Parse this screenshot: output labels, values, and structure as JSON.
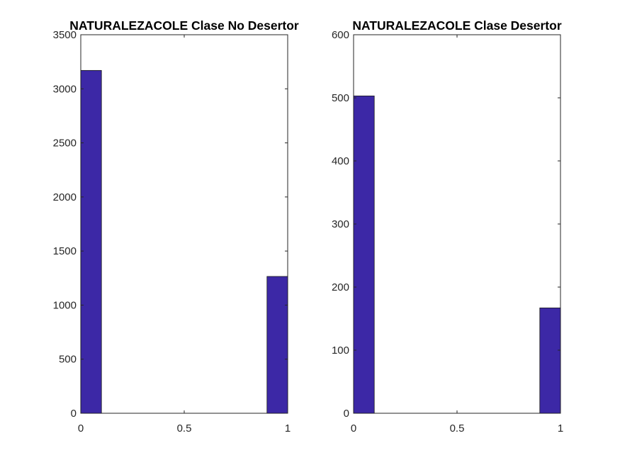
{
  "figure": {
    "background": "#ffffff",
    "bar_color": "#3c28a6"
  },
  "chart_data": [
    {
      "type": "bar",
      "title": "NATURALEZACOLE Clase No Desertor",
      "xlabel": "",
      "ylabel": "",
      "xlim": [
        0,
        1
      ],
      "ylim": [
        0,
        3500
      ],
      "x_ticks": [
        0,
        0.5,
        1
      ],
      "x_tick_labels": [
        "0",
        "0.5",
        "1"
      ],
      "y_ticks": [
        0,
        500,
        1000,
        1500,
        2000,
        2500,
        3000,
        3500
      ],
      "y_tick_labels": [
        "0",
        "500",
        "1000",
        "1500",
        "2000",
        "2500",
        "3000",
        "3500"
      ],
      "bins": [
        {
          "start": 0.0,
          "end": 0.1,
          "count": 3170
        },
        {
          "start": 0.9,
          "end": 1.0,
          "count": 1265
        }
      ],
      "grid": false,
      "color": "#3c28a6"
    },
    {
      "type": "bar",
      "title": "NATURALEZACOLE Clase Desertor",
      "xlabel": "",
      "ylabel": "",
      "xlim": [
        0,
        1
      ],
      "ylim": [
        0,
        600
      ],
      "x_ticks": [
        0,
        0.5,
        1
      ],
      "x_tick_labels": [
        "0",
        "0.5",
        "1"
      ],
      "y_ticks": [
        0,
        100,
        200,
        300,
        400,
        500,
        600
      ],
      "y_tick_labels": [
        "0",
        "100",
        "200",
        "300",
        "400",
        "500",
        "600"
      ],
      "bins": [
        {
          "start": 0.0,
          "end": 0.1,
          "count": 503
        },
        {
          "start": 0.9,
          "end": 1.0,
          "count": 167
        }
      ],
      "grid": false,
      "color": "#3c28a6"
    }
  ]
}
